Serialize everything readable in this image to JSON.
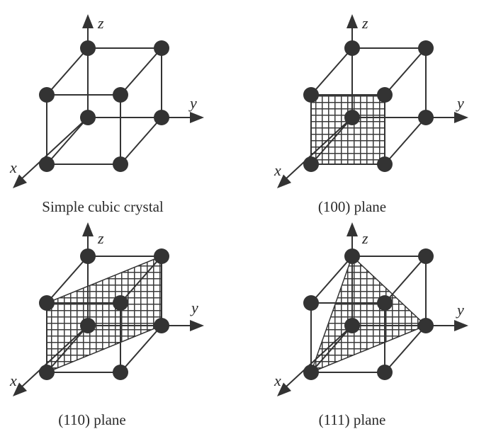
{
  "panels": [
    {
      "caption": "Simple cubic crystal",
      "plane": "none",
      "axes": {
        "x": "x",
        "y": "y",
        "z": "z"
      }
    },
    {
      "caption": "(100) plane",
      "plane": "100",
      "axes": {
        "x": "x",
        "y": "y",
        "z": "z"
      }
    },
    {
      "caption": "(110) plane",
      "plane": "110",
      "axes": {
        "x": "x",
        "y": "y",
        "z": "z"
      }
    },
    {
      "caption": "(111) plane",
      "plane": "111",
      "axes": {
        "x": "x",
        "y": "y",
        "z": "z"
      }
    }
  ],
  "colors": {
    "ink": "#333333",
    "hatch": "#3a3a3a",
    "background": "#ffffff"
  }
}
